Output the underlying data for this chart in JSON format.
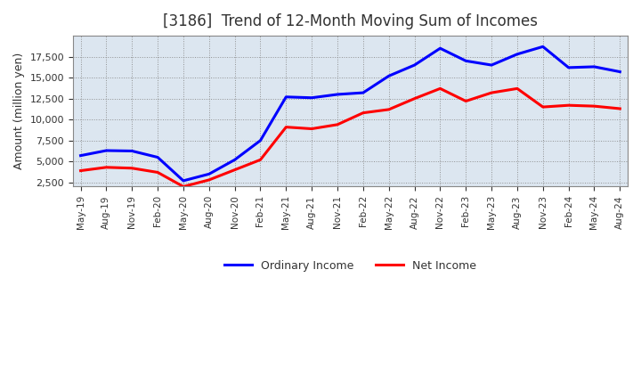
{
  "title": "[3186]  Trend of 12-Month Moving Sum of Incomes",
  "ylabel": "Amount (million yen)",
  "x_labels": [
    "May-19",
    "Aug-19",
    "Nov-19",
    "Feb-20",
    "May-20",
    "Aug-20",
    "Nov-20",
    "Feb-21",
    "May-21",
    "Aug-21",
    "Nov-21",
    "Feb-22",
    "May-22",
    "Aug-22",
    "Nov-22",
    "Feb-23",
    "May-23",
    "Aug-23",
    "Nov-23",
    "Feb-24",
    "May-24",
    "Aug-24"
  ],
  "ordinary_income": [
    5700,
    6300,
    6250,
    5500,
    2700,
    3500,
    5200,
    7500,
    12700,
    12600,
    13000,
    13200,
    15200,
    16500,
    18500,
    17000,
    16500,
    17800,
    18700,
    16200,
    16300,
    15700
  ],
  "net_income": [
    3900,
    4300,
    4200,
    3700,
    2000,
    2800,
    4000,
    5200,
    9100,
    8900,
    9400,
    10800,
    11200,
    12500,
    13700,
    12200,
    13200,
    13700,
    11500,
    11700,
    11600,
    11300
  ],
  "ordinary_color": "#0000ff",
  "net_color": "#ff0000",
  "ylim": [
    2000,
    20000
  ],
  "yticks": [
    2500,
    5000,
    7500,
    10000,
    12500,
    15000,
    17500
  ],
  "background_color": "#ffffff",
  "plot_bg_color": "#dce6f0",
  "grid_color": "#aaaaaa",
  "title_fontsize": 12,
  "legend_labels": [
    "Ordinary Income",
    "Net Income"
  ]
}
